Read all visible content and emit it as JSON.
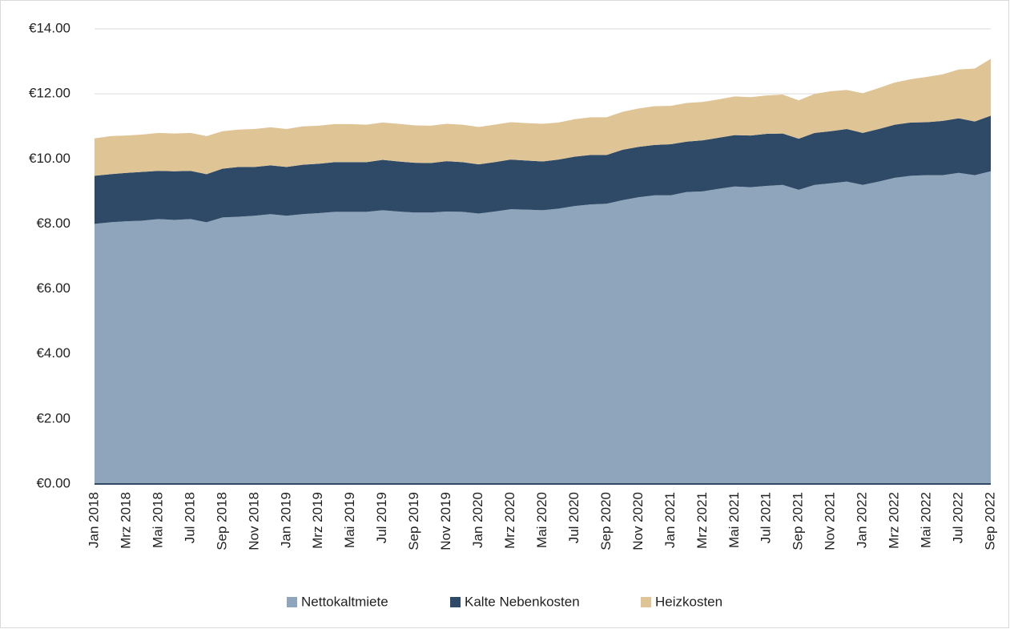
{
  "chart_data": {
    "type": "stacked_area",
    "categories": [
      "Jan 2018",
      null,
      "Mrz 2018",
      null,
      "Mai 2018",
      null,
      "Jul 2018",
      null,
      "Sep 2018",
      null,
      "Nov 2018",
      null,
      "Jan 2019",
      null,
      "Mrz 2019",
      null,
      "Mai 2019",
      null,
      "Jul 2019",
      null,
      "Sep 2019",
      null,
      "Nov 2019",
      null,
      "Jan 2020",
      null,
      "Mrz 2020",
      null,
      "Mai 2020",
      null,
      "Jul 2020",
      null,
      "Sep 2020",
      null,
      "Nov 2020",
      null,
      "Jan 2021",
      null,
      "Mrz 2021",
      null,
      "Mai 2021",
      null,
      "Jul 2021",
      null,
      "Sep 2021",
      null,
      "Nov 2021",
      null,
      "Jan 2022",
      null,
      "Mrz 2022",
      null,
      "Mai 2022",
      null,
      "Jul 2022",
      null,
      "Sep 2022"
    ],
    "series": [
      {
        "name": "Nettokaltmiete",
        "color": "#8fa5bb",
        "values": [
          8.0,
          8.05,
          8.08,
          8.1,
          8.15,
          8.12,
          8.15,
          8.05,
          8.2,
          8.22,
          8.25,
          8.3,
          8.25,
          8.3,
          8.33,
          8.37,
          8.37,
          8.37,
          8.42,
          8.38,
          8.35,
          8.35,
          8.38,
          8.37,
          8.32,
          8.38,
          8.45,
          8.44,
          8.42,
          8.47,
          8.55,
          8.6,
          8.62,
          8.73,
          8.82,
          8.88,
          8.88,
          8.98,
          9.0,
          9.08,
          9.15,
          9.13,
          9.17,
          9.2,
          9.05,
          9.2,
          9.25,
          9.3,
          9.2,
          9.3,
          9.42,
          9.48,
          9.5,
          9.5,
          9.57,
          9.5,
          9.62
        ]
      },
      {
        "name": "Kalte Nebenkosten",
        "color": "#2e4a66",
        "values": [
          1.48,
          1.48,
          1.49,
          1.5,
          1.48,
          1.5,
          1.48,
          1.48,
          1.5,
          1.53,
          1.5,
          1.5,
          1.5,
          1.52,
          1.52,
          1.53,
          1.53,
          1.53,
          1.55,
          1.54,
          1.53,
          1.52,
          1.55,
          1.53,
          1.51,
          1.52,
          1.53,
          1.51,
          1.5,
          1.51,
          1.52,
          1.52,
          1.5,
          1.55,
          1.55,
          1.55,
          1.57,
          1.55,
          1.57,
          1.57,
          1.58,
          1.59,
          1.6,
          1.58,
          1.57,
          1.6,
          1.6,
          1.62,
          1.6,
          1.62,
          1.63,
          1.64,
          1.63,
          1.67,
          1.68,
          1.65,
          1.71
        ]
      },
      {
        "name": "Heizkosten",
        "color": "#dfc496",
        "values": [
          1.15,
          1.17,
          1.15,
          1.15,
          1.17,
          1.16,
          1.17,
          1.17,
          1.15,
          1.15,
          1.17,
          1.17,
          1.17,
          1.18,
          1.17,
          1.17,
          1.17,
          1.15,
          1.15,
          1.16,
          1.15,
          1.15,
          1.15,
          1.15,
          1.15,
          1.15,
          1.15,
          1.15,
          1.16,
          1.14,
          1.15,
          1.16,
          1.16,
          1.17,
          1.18,
          1.19,
          1.18,
          1.19,
          1.18,
          1.18,
          1.19,
          1.18,
          1.18,
          1.2,
          1.18,
          1.2,
          1.23,
          1.2,
          1.22,
          1.26,
          1.3,
          1.33,
          1.39,
          1.43,
          1.5,
          1.63,
          1.75
        ]
      }
    ],
    "ylim": [
      0,
      14
    ],
    "yticks": [
      {
        "value": 0,
        "label": "€0.00"
      },
      {
        "value": 2,
        "label": "€2.00"
      },
      {
        "value": 4,
        "label": "€4.00"
      },
      {
        "value": 6,
        "label": "€6.00"
      },
      {
        "value": 8,
        "label": "€8.00"
      },
      {
        "value": 10,
        "label": "€10.00"
      },
      {
        "value": 12,
        "label": "€12.00"
      },
      {
        "value": 14,
        "label": "€14.00"
      }
    ],
    "grid": true,
    "legend": "bottom"
  }
}
